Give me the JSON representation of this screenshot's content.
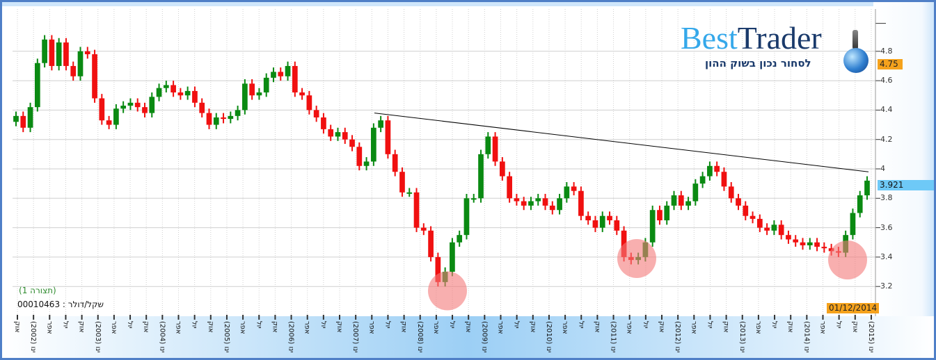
{
  "chart_data": {
    "type": "candlestick",
    "title": "",
    "instrument_label": "שקל/דולר : 00010463",
    "config_label": "(תצורה 1)",
    "yticks": [
      "3.2",
      "3.4",
      "3.6",
      "3.8",
      "4",
      "4.2",
      "4.4",
      "4.6",
      "4.8"
    ],
    "ylim": [
      3.05,
      5.0
    ],
    "xticks": [
      "אוק",
      "ינו (2002)",
      "אפר",
      "יול",
      "אוק",
      "ינו (2003)",
      "אפר",
      "יול",
      "אוק",
      "ינו (2004)",
      "אפר",
      "יול",
      "אוק",
      "ינו (2005)",
      "אפר",
      "יול",
      "אוק",
      "ינו (2006)",
      "אפר",
      "יול",
      "אוק",
      "ינו (2007)",
      "אפר",
      "יול",
      "אוק",
      "ינו (2008)",
      "אפר",
      "יול",
      "אוק",
      "ינו (2009)",
      "אפר",
      "יול",
      "אוק",
      "ינו (2010)",
      "אפר",
      "יול",
      "אוק",
      "ינו (2011)",
      "אפר",
      "יול",
      "אוק",
      "ינו (2012)",
      "אפר",
      "יול",
      "אוק",
      "ינו (2013)",
      "אפר",
      "יול",
      "אוק",
      "ינו (2014)",
      "אפר",
      "יול",
      "אוק",
      "ינו (2015)"
    ],
    "close": [
      4.36,
      4.28,
      4.42,
      4.72,
      4.88,
      4.7,
      4.86,
      4.7,
      4.63,
      4.8,
      4.78,
      4.48,
      4.33,
      4.3,
      4.41,
      4.43,
      4.45,
      4.42,
      4.38,
      4.49,
      4.55,
      4.57,
      4.52,
      4.5,
      4.53,
      4.45,
      4.38,
      4.3,
      4.35,
      4.34,
      4.36,
      4.4,
      4.58,
      4.5,
      4.52,
      4.62,
      4.66,
      4.63,
      4.7,
      4.52,
      4.5,
      4.4,
      4.35,
      4.27,
      4.22,
      4.25,
      4.2,
      4.15,
      4.02,
      4.05,
      4.28,
      4.33,
      4.1,
      3.98,
      3.84,
      3.84,
      3.6,
      3.58,
      3.4,
      3.23,
      3.3,
      3.5,
      3.55,
      3.8,
      3.8,
      4.1,
      4.22,
      4.05,
      3.95,
      3.8,
      3.78,
      3.75,
      3.78,
      3.8,
      3.75,
      3.72,
      3.8,
      3.88,
      3.85,
      3.68,
      3.65,
      3.6,
      3.68,
      3.65,
      3.58,
      3.4,
      3.38,
      3.4,
      3.5,
      3.72,
      3.65,
      3.75,
      3.82,
      3.75,
      3.78,
      3.9,
      3.95,
      4.02,
      3.98,
      3.88,
      3.8,
      3.75,
      3.68,
      3.66,
      3.6,
      3.58,
      3.62,
      3.55,
      3.52,
      3.5,
      3.48,
      3.5,
      3.47,
      3.46,
      3.44,
      3.43,
      3.55,
      3.7,
      3.82,
      3.92
    ],
    "trendline": {
      "from": 4.38,
      "to": 3.98
    },
    "highlighted_lows": [
      3.17,
      3.39,
      3.38
    ],
    "last_price": "3.921",
    "marker_price": "4.75",
    "last_date": "01/12/2014",
    "colors": {
      "up": "#0a8a12",
      "down": "#f01010",
      "trendline": "#000000",
      "highlight": "#f47a7a",
      "last_badge": "#6ec9f7",
      "marker_badge": "#f5a21c"
    }
  },
  "logo": {
    "best": "Best",
    "trader": "Trader",
    "tagline": "לסחור נכון בשוק ההון"
  }
}
